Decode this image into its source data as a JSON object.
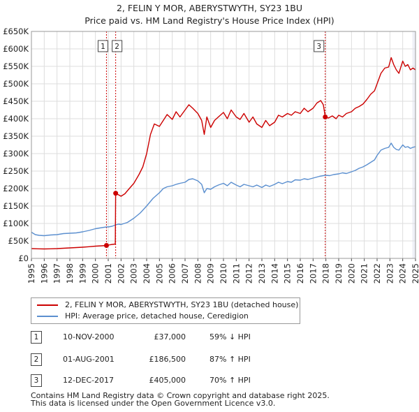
{
  "header": {
    "title_line1": "2, FELIN Y MOR, ABERYSTWYTH, SY23 1BU",
    "title_line2": "Price paid vs. HM Land Registry's House Price Index (HPI)"
  },
  "chart_data": {
    "type": "line",
    "x_range": [
      1995,
      2025
    ],
    "y_range": [
      0,
      650000
    ],
    "y_ticks": [
      0,
      50000,
      100000,
      150000,
      200000,
      250000,
      300000,
      350000,
      400000,
      450000,
      500000,
      550000,
      600000,
      650000
    ],
    "y_tick_labels": [
      "£0",
      "£50K",
      "£100K",
      "£150K",
      "£200K",
      "£250K",
      "£300K",
      "£350K",
      "£400K",
      "£450K",
      "£500K",
      "£550K",
      "£600K",
      "£650K"
    ],
    "x_ticks": [
      1995,
      1996,
      1997,
      1998,
      1999,
      2000,
      2001,
      2002,
      2003,
      2004,
      2005,
      2006,
      2007,
      2008,
      2009,
      2010,
      2011,
      2012,
      2013,
      2014,
      2015,
      2016,
      2017,
      2018,
      2019,
      2020,
      2021,
      2022,
      2023,
      2024,
      2025
    ],
    "x_tick_labels": [
      "1995",
      "1996",
      "1997",
      "1998",
      "1999",
      "2000",
      "2001",
      "2002",
      "2003",
      "2004",
      "2005",
      "2006",
      "2007",
      "2008",
      "2009",
      "2010",
      "2011",
      "2012",
      "2013",
      "2014",
      "2015",
      "2016",
      "2017",
      "2018",
      "2019",
      "2020",
      "2021",
      "2022",
      "2023",
      "2024",
      "2025"
    ],
    "grid": true,
    "shaded_future_from": 2024.75,
    "series": [
      {
        "name": "2, FELIN Y MOR, ABERYSTWYTH, SY23 1BU (detached house)",
        "color": "#cc0000",
        "points": [
          [
            1995.0,
            28000
          ],
          [
            1995.5,
            27500
          ],
          [
            1996.0,
            27000
          ],
          [
            1996.5,
            27500
          ],
          [
            1997.0,
            28000
          ],
          [
            1997.5,
            29000
          ],
          [
            1998.0,
            30000
          ],
          [
            1998.5,
            31000
          ],
          [
            1999.0,
            32000
          ],
          [
            1999.5,
            33500
          ],
          [
            2000.0,
            35000
          ],
          [
            2000.5,
            36000
          ],
          [
            2000.86,
            37000
          ],
          [
            2001.0,
            38000
          ],
          [
            2001.3,
            40000
          ],
          [
            2001.55,
            41000
          ],
          [
            2001.58,
            186500
          ],
          [
            2001.8,
            182000
          ],
          [
            2002.0,
            178000
          ],
          [
            2002.3,
            185000
          ],
          [
            2002.6,
            198000
          ],
          [
            2003.0,
            215000
          ],
          [
            2003.4,
            240000
          ],
          [
            2003.7,
            262000
          ],
          [
            2004.0,
            300000
          ],
          [
            2004.3,
            355000
          ],
          [
            2004.6,
            385000
          ],
          [
            2005.0,
            378000
          ],
          [
            2005.3,
            395000
          ],
          [
            2005.6,
            412000
          ],
          [
            2006.0,
            398000
          ],
          [
            2006.3,
            420000
          ],
          [
            2006.6,
            405000
          ],
          [
            2007.0,
            425000
          ],
          [
            2007.3,
            440000
          ],
          [
            2007.6,
            430000
          ],
          [
            2008.0,
            415000
          ],
          [
            2008.3,
            395000
          ],
          [
            2008.5,
            355000
          ],
          [
            2008.7,
            405000
          ],
          [
            2009.0,
            375000
          ],
          [
            2009.3,
            395000
          ],
          [
            2009.6,
            405000
          ],
          [
            2010.0,
            418000
          ],
          [
            2010.3,
            400000
          ],
          [
            2010.6,
            425000
          ],
          [
            2011.0,
            405000
          ],
          [
            2011.3,
            398000
          ],
          [
            2011.6,
            415000
          ],
          [
            2012.0,
            390000
          ],
          [
            2012.3,
            405000
          ],
          [
            2012.6,
            385000
          ],
          [
            2013.0,
            375000
          ],
          [
            2013.3,
            395000
          ],
          [
            2013.6,
            380000
          ],
          [
            2014.0,
            390000
          ],
          [
            2014.3,
            410000
          ],
          [
            2014.6,
            405000
          ],
          [
            2015.0,
            415000
          ],
          [
            2015.3,
            410000
          ],
          [
            2015.6,
            420000
          ],
          [
            2016.0,
            415000
          ],
          [
            2016.3,
            430000
          ],
          [
            2016.6,
            420000
          ],
          [
            2017.0,
            430000
          ],
          [
            2017.3,
            445000
          ],
          [
            2017.6,
            452000
          ],
          [
            2017.8,
            440000
          ],
          [
            2017.95,
            405000
          ],
          [
            2018.2,
            402000
          ],
          [
            2018.5,
            408000
          ],
          [
            2018.8,
            400000
          ],
          [
            2019.0,
            410000
          ],
          [
            2019.3,
            405000
          ],
          [
            2019.6,
            415000
          ],
          [
            2020.0,
            420000
          ],
          [
            2020.3,
            430000
          ],
          [
            2020.6,
            435000
          ],
          [
            2020.9,
            442000
          ],
          [
            2021.2,
            455000
          ],
          [
            2021.5,
            470000
          ],
          [
            2021.8,
            480000
          ],
          [
            2022.0,
            500000
          ],
          [
            2022.3,
            530000
          ],
          [
            2022.6,
            545000
          ],
          [
            2022.9,
            548000
          ],
          [
            2023.1,
            575000
          ],
          [
            2023.3,
            555000
          ],
          [
            2023.5,
            540000
          ],
          [
            2023.7,
            530000
          ],
          [
            2024.0,
            565000
          ],
          [
            2024.2,
            550000
          ],
          [
            2024.4,
            555000
          ],
          [
            2024.6,
            540000
          ],
          [
            2024.8,
            545000
          ],
          [
            2025.0,
            540000
          ]
        ]
      },
      {
        "name": "HPI: Average price, detached house, Ceredigion",
        "color": "#5b8fcf",
        "points": [
          [
            1995.0,
            75000
          ],
          [
            1995.3,
            68000
          ],
          [
            1995.6,
            66000
          ],
          [
            1996.0,
            65000
          ],
          [
            1996.5,
            67000
          ],
          [
            1997.0,
            68000
          ],
          [
            1997.5,
            71000
          ],
          [
            1998.0,
            72000
          ],
          [
            1998.5,
            73000
          ],
          [
            1999.0,
            76000
          ],
          [
            1999.5,
            80000
          ],
          [
            2000.0,
            85000
          ],
          [
            2000.5,
            88000
          ],
          [
            2000.86,
            90000
          ],
          [
            2001.0,
            90000
          ],
          [
            2001.3,
            92000
          ],
          [
            2001.58,
            96000
          ],
          [
            2001.8,
            98000
          ],
          [
            2002.0,
            97000
          ],
          [
            2002.5,
            103000
          ],
          [
            2003.0,
            115000
          ],
          [
            2003.5,
            130000
          ],
          [
            2004.0,
            150000
          ],
          [
            2004.5,
            172000
          ],
          [
            2005.0,
            188000
          ],
          [
            2005.3,
            200000
          ],
          [
            2005.6,
            205000
          ],
          [
            2006.0,
            208000
          ],
          [
            2006.3,
            212000
          ],
          [
            2006.6,
            215000
          ],
          [
            2007.0,
            218000
          ],
          [
            2007.3,
            226000
          ],
          [
            2007.6,
            228000
          ],
          [
            2008.0,
            222000
          ],
          [
            2008.3,
            212000
          ],
          [
            2008.5,
            188000
          ],
          [
            2008.7,
            200000
          ],
          [
            2009.0,
            198000
          ],
          [
            2009.3,
            205000
          ],
          [
            2009.6,
            210000
          ],
          [
            2010.0,
            215000
          ],
          [
            2010.3,
            208000
          ],
          [
            2010.6,
            218000
          ],
          [
            2011.0,
            210000
          ],
          [
            2011.3,
            205000
          ],
          [
            2011.6,
            212000
          ],
          [
            2012.0,
            208000
          ],
          [
            2012.3,
            205000
          ],
          [
            2012.6,
            210000
          ],
          [
            2013.0,
            203000
          ],
          [
            2013.3,
            210000
          ],
          [
            2013.6,
            206000
          ],
          [
            2014.0,
            212000
          ],
          [
            2014.3,
            218000
          ],
          [
            2014.6,
            214000
          ],
          [
            2015.0,
            220000
          ],
          [
            2015.3,
            218000
          ],
          [
            2015.6,
            225000
          ],
          [
            2016.0,
            224000
          ],
          [
            2016.3,
            228000
          ],
          [
            2016.6,
            226000
          ],
          [
            2017.0,
            230000
          ],
          [
            2017.5,
            235000
          ],
          [
            2017.95,
            238000
          ],
          [
            2018.3,
            237000
          ],
          [
            2018.6,
            240000
          ],
          [
            2019.0,
            242000
          ],
          [
            2019.3,
            245000
          ],
          [
            2019.6,
            243000
          ],
          [
            2020.0,
            248000
          ],
          [
            2020.3,
            252000
          ],
          [
            2020.6,
            258000
          ],
          [
            2020.9,
            262000
          ],
          [
            2021.2,
            268000
          ],
          [
            2021.5,
            275000
          ],
          [
            2021.8,
            282000
          ],
          [
            2022.0,
            295000
          ],
          [
            2022.3,
            310000
          ],
          [
            2022.6,
            315000
          ],
          [
            2022.9,
            318000
          ],
          [
            2023.1,
            330000
          ],
          [
            2023.3,
            318000
          ],
          [
            2023.5,
            312000
          ],
          [
            2023.7,
            310000
          ],
          [
            2024.0,
            325000
          ],
          [
            2024.2,
            318000
          ],
          [
            2024.4,
            320000
          ],
          [
            2024.6,
            315000
          ],
          [
            2024.8,
            318000
          ],
          [
            2025.0,
            320000
          ]
        ]
      }
    ],
    "sales": [
      {
        "label": "1",
        "date": "10-NOV-2000",
        "x": 2000.86,
        "price": 37000
      },
      {
        "label": "2",
        "date": "01-AUG-2001",
        "x": 2001.58,
        "price": 186500
      },
      {
        "label": "3",
        "date": "12-DEC-2017",
        "x": 2017.95,
        "price": 405000
      }
    ]
  },
  "legend": {
    "property_label": "2, FELIN Y MOR, ABERYSTWYTH, SY23 1BU (detached house)",
    "hpi_label": "HPI: Average price, detached house, Ceredigion",
    "property_color": "#cc0000",
    "hpi_color": "#5b8fcf"
  },
  "table": {
    "rows": [
      {
        "num": "1",
        "date": "10-NOV-2000",
        "price": "£37,000",
        "hpi": "59% ↓ HPI"
      },
      {
        "num": "2",
        "date": "01-AUG-2001",
        "price": "£186,500",
        "hpi": "87% ↑ HPI"
      },
      {
        "num": "3",
        "date": "12-DEC-2017",
        "price": "£405,000",
        "hpi": "70% ↑ HPI"
      }
    ]
  },
  "footer": {
    "line1": "Contains HM Land Registry data © Crown copyright and database right 2025.",
    "line2": "This data is licensed under the Open Government Licence v3.0."
  }
}
